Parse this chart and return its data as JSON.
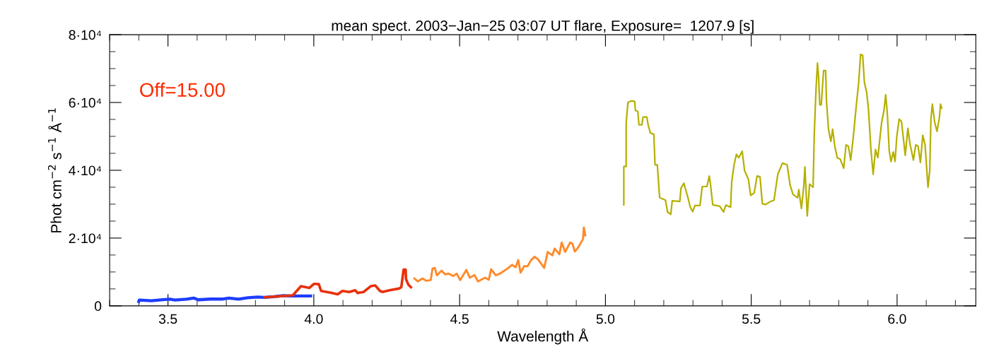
{
  "chart_data": {
    "type": "line",
    "title": "mean spect. 2003−Jan−25 03:07 UT flare, Exposure=  1207.9 [s]",
    "xlabel": "Wavelength Å",
    "ylabel": "Phot cm$^{−2}$ s$^{−1}$ Å$^{−1}$",
    "annotations": [
      "Off=15.00"
    ],
    "xlim": [
      3.3,
      6.27
    ],
    "xticks": [
      {
        "value": 3.5,
        "label": "3.5"
      },
      {
        "value": 4.0,
        "label": "4.0"
      },
      {
        "value": 4.5,
        "label": "4.5"
      },
      {
        "value": 5.0,
        "label": "5.0"
      },
      {
        "value": 5.5,
        "label": "5.5"
      },
      {
        "value": 6.0,
        "label": "6.0"
      }
    ],
    "ylim": [
      0,
      80000
    ],
    "yticks": [
      0,
      {
        "value": 20000,
        "label": "2·10⁴"
      },
      {
        "value": 40000,
        "label": "4·10⁴"
      },
      {
        "value": 60000,
        "label": "6·10⁴"
      },
      {
        "value": 80000,
        "label": "8·10⁴"
      }
    ],
    "grid": false,
    "legend": false,
    "series": [
      {
        "color": "#1e3cff",
        "x": [
          3.4,
          3.402,
          3.443,
          3.483,
          3.507,
          3.524,
          3.564,
          3.588,
          3.604,
          3.645,
          3.685,
          3.709,
          3.742,
          3.774,
          3.807,
          3.831,
          3.863,
          3.896,
          3.92,
          3.989
        ],
        "values": [
          1300,
          1700,
          1500,
          1800,
          2000,
          1700,
          2000,
          2300,
          1800,
          2000,
          2000,
          2300,
          2000,
          2400,
          2600,
          2500,
          2700,
          3000,
          2900,
          2900
        ]
      },
      {
        "color": "#e8300a",
        "x": [
          3.831,
          3.928,
          3.956,
          3.985,
          4.001,
          4.017,
          4.025,
          4.058,
          4.082,
          4.098,
          4.122,
          4.142,
          4.15,
          4.171,
          4.195,
          4.211,
          4.227,
          4.235,
          4.26,
          4.292,
          4.3,
          4.308,
          4.315,
          4.316,
          4.324,
          4.333
        ],
        "values": [
          2500,
          3100,
          5800,
          5300,
          6500,
          6400,
          4400,
          3900,
          3400,
          4400,
          4100,
          4600,
          3800,
          4100,
          5800,
          6000,
          4400,
          4100,
          4600,
          5100,
          5500,
          10700,
          10700,
          7900,
          6300,
          5500
        ]
      },
      {
        "color": "#ff8a2a",
        "x": [
          4.345,
          4.357,
          4.373,
          4.385,
          4.401,
          4.407,
          4.415,
          4.422,
          4.438,
          4.45,
          4.462,
          4.478,
          4.49,
          4.502,
          4.523,
          4.535,
          4.551,
          4.563,
          4.587,
          4.6,
          4.608,
          4.624,
          4.64,
          4.664,
          4.68,
          4.692,
          4.701,
          4.709,
          4.721,
          4.733,
          4.745,
          4.757,
          4.769,
          4.79,
          4.802,
          4.818,
          4.826,
          4.842,
          4.85,
          4.862,
          4.879,
          4.887,
          4.895,
          4.907,
          4.923,
          4.926,
          4.931
        ],
        "values": [
          8100,
          7200,
          8100,
          7400,
          7600,
          11000,
          11200,
          9000,
          10400,
          9300,
          9500,
          8800,
          9500,
          7600,
          10600,
          8300,
          9100,
          7200,
          8300,
          7700,
          10800,
          9000,
          9600,
          11000,
          12100,
          11400,
          13500,
          9800,
          11700,
          11700,
          13500,
          14500,
          13700,
          11200,
          15900,
          14900,
          16900,
          15200,
          18700,
          15900,
          18700,
          18300,
          16000,
          17300,
          19700,
          23100,
          20800
        ]
      },
      {
        "color": "#b5b000",
        "x": [
          5.063,
          5.063,
          5.071,
          5.071,
          5.077,
          5.089,
          5.1,
          5.103,
          5.111,
          5.115,
          5.125,
          5.129,
          5.142,
          5.146,
          5.154,
          5.166,
          5.17,
          5.178,
          5.184,
          5.186,
          5.206,
          5.213,
          5.224,
          5.229,
          5.255,
          5.259,
          5.269,
          5.275,
          5.283,
          5.291,
          5.299,
          5.307,
          5.324,
          5.332,
          5.348,
          5.356,
          5.36,
          5.368,
          5.392,
          5.405,
          5.413,
          5.429,
          5.433,
          5.441,
          5.449,
          5.457,
          5.469,
          5.477,
          5.49,
          5.498,
          5.51,
          5.52,
          5.53,
          5.538,
          5.55,
          5.562,
          5.578,
          5.591,
          5.607,
          5.623,
          5.633,
          5.643,
          5.659,
          5.663,
          5.672,
          5.68,
          5.684,
          5.692,
          5.7,
          5.712,
          5.716,
          5.722,
          5.727,
          5.731,
          5.735,
          5.74,
          5.748,
          5.755,
          5.758,
          5.765,
          5.773,
          5.779,
          5.787,
          5.795,
          5.805,
          5.817,
          5.825,
          5.833,
          5.841,
          5.85,
          5.86,
          5.868,
          5.875,
          5.882,
          5.888,
          5.896,
          5.902,
          5.91,
          5.918,
          5.926,
          5.934,
          5.947,
          5.955,
          5.961,
          5.967,
          5.973,
          5.979,
          5.987,
          5.993,
          5.999,
          6.007,
          6.015,
          6.022,
          6.028,
          6.037,
          6.044,
          6.056,
          6.064,
          6.072,
          6.08,
          6.088,
          6.096,
          6.106,
          6.112,
          6.116,
          6.121,
          6.129,
          6.137,
          6.145,
          6.149,
          6.153
        ],
        "values": [
          29800,
          41100,
          41100,
          53800,
          60000,
          60500,
          60300,
          57600,
          57400,
          53400,
          53400,
          55700,
          55700,
          53600,
          51000,
          50600,
          41600,
          41600,
          34000,
          31900,
          31200,
          27700,
          27000,
          31000,
          30800,
          34700,
          36200,
          34300,
          31900,
          29100,
          27800,
          29600,
          29600,
          35200,
          35200,
          38300,
          36000,
          29800,
          29400,
          27700,
          29700,
          29100,
          36600,
          41600,
          44700,
          43700,
          45600,
          39900,
          37400,
          32600,
          33300,
          38300,
          38100,
          30100,
          29900,
          30600,
          31200,
          38800,
          42100,
          41600,
          35700,
          32900,
          31900,
          34300,
          28700,
          35300,
          41000,
          26500,
          35900,
          35000,
          50600,
          63800,
          71600,
          67300,
          59300,
          59300,
          69400,
          69400,
          60300,
          52000,
          48500,
          52100,
          46800,
          43700,
          43300,
          40600,
          47500,
          47100,
          43000,
          49900,
          59000,
          65600,
          74200,
          73900,
          65900,
          62800,
          57900,
          46500,
          38800,
          46100,
          43700,
          54100,
          57600,
          62300,
          56200,
          45800,
          42600,
          45400,
          42600,
          49900,
          55100,
          54400,
          49200,
          44400,
          52400,
          47900,
          43000,
          47500,
          47100,
          42300,
          50300,
          47500,
          35000,
          39900,
          55100,
          59500,
          54100,
          51500,
          55500,
          59500,
          58300
        ]
      }
    ]
  }
}
